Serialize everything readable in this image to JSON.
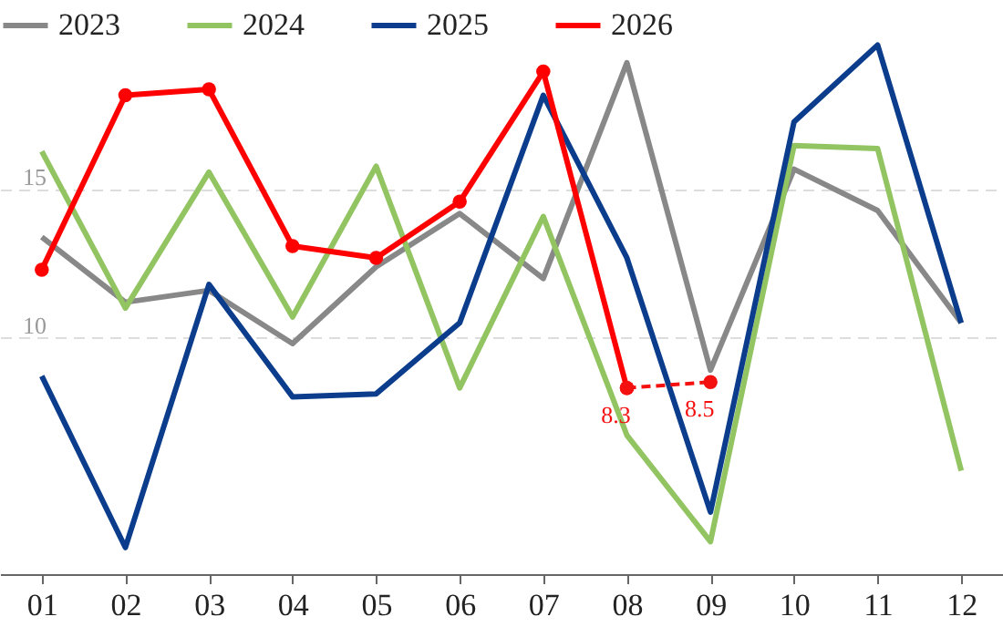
{
  "chart_data": {
    "type": "line",
    "categories": [
      "01",
      "02",
      "03",
      "04",
      "05",
      "06",
      "07",
      "08",
      "09",
      "10",
      "11",
      "12"
    ],
    "series": [
      {
        "name": "2023",
        "color": "#888888",
        "values": [
          13.4,
          11.2,
          11.6,
          9.8,
          12.4,
          14.2,
          12.0,
          19.3,
          8.9,
          15.7,
          14.3,
          10.5
        ]
      },
      {
        "name": "2024",
        "color": "#92c462",
        "values": [
          16.3,
          11.0,
          15.6,
          10.7,
          15.8,
          8.3,
          14.1,
          6.7,
          3.1,
          16.5,
          16.4,
          5.5
        ]
      },
      {
        "name": "2025",
        "color": "#0b3d8c",
        "values": [
          8.7,
          2.9,
          11.8,
          8.0,
          8.1,
          10.5,
          18.2,
          12.7,
          4.1,
          17.3,
          19.9,
          10.5
        ]
      },
      {
        "name": "2026",
        "color": "#ff0000",
        "marker": "circle",
        "values": [
          12.3,
          18.2,
          18.4,
          13.1,
          12.7,
          14.6,
          19.0,
          8.3,
          null,
          null,
          null,
          null
        ]
      },
      {
        "color": "#f51010",
        "marker": "circle",
        "line_style": "dashed",
        "values": [
          null,
          null,
          null,
          null,
          null,
          null,
          null,
          8.3,
          8.5,
          null,
          null,
          null
        ],
        "value_labels": [
          null,
          null,
          null,
          null,
          null,
          null,
          null,
          "8.3",
          "8.5",
          null,
          null,
          null
        ]
      }
    ],
    "ylim": [
      2,
      21.3
    ],
    "yticks": [
      10,
      15
    ],
    "grid": "y",
    "legend": "top"
  }
}
